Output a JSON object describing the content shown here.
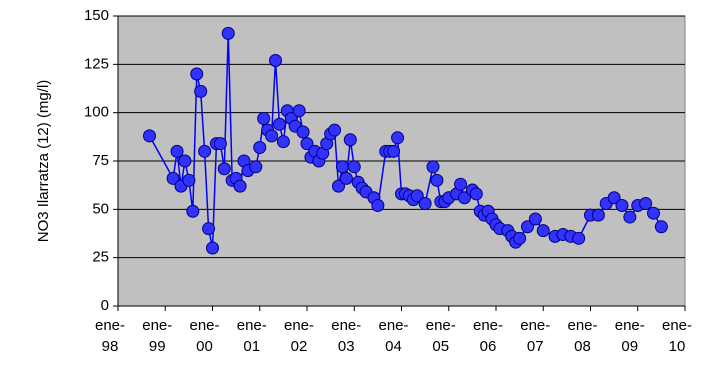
{
  "chart_data": {
    "type": "line",
    "y_label": "NO3 Ilarratza (12) (mg/l)",
    "color": "#0000ff",
    "marker_color": "#3232ff",
    "marker_edge": "#000080",
    "plot_bg": "#c0c0c0",
    "grid": true,
    "xlim": [
      "1998-01",
      "2010-01"
    ],
    "xticks": [
      {
        "value": "1998-01",
        "label": "ene-98"
      },
      {
        "value": "1999-01",
        "label": "ene-99"
      },
      {
        "value": "2000-01",
        "label": "ene-00"
      },
      {
        "value": "2001-01",
        "label": "ene-01"
      },
      {
        "value": "2002-01",
        "label": "ene-02"
      },
      {
        "value": "2003-01",
        "label": "ene-03"
      },
      {
        "value": "2004-01",
        "label": "ene-04"
      },
      {
        "value": "2005-01",
        "label": "ene-05"
      },
      {
        "value": "2006-01",
        "label": "ene-06"
      },
      {
        "value": "2007-01",
        "label": "ene-07"
      },
      {
        "value": "2008-01",
        "label": "ene-08"
      },
      {
        "value": "2009-01",
        "label": "ene-09"
      },
      {
        "value": "2010-01",
        "label": "ene-10"
      }
    ],
    "ylim": [
      0,
      150
    ],
    "yticks": [
      0,
      25,
      50,
      75,
      100,
      125,
      150
    ],
    "x": [
      "1998-09",
      "1999-03",
      "1999-04",
      "1999-05",
      "1999-06",
      "1999-07",
      "1999-08",
      "1999-09",
      "1999-10",
      "1999-11",
      "1999-12",
      "2000-01",
      "2000-02",
      "2000-03",
      "2000-04",
      "2000-05",
      "2000-06",
      "2000-07",
      "2000-08",
      "2000-09",
      "2000-10",
      "2000-12",
      "2001-01",
      "2001-02",
      "2001-03",
      "2001-04",
      "2001-05",
      "2001-06",
      "2001-07",
      "2001-08",
      "2001-09",
      "2001-10",
      "2001-11",
      "2001-12",
      "2002-01",
      "2002-02",
      "2002-03",
      "2002-04",
      "2002-05",
      "2002-06",
      "2002-07",
      "2002-08",
      "2002-09",
      "2002-10",
      "2002-11",
      "2002-12",
      "2003-01",
      "2003-02",
      "2003-03",
      "2003-04",
      "2003-06",
      "2003-07",
      "2003-09",
      "2003-10",
      "2003-11",
      "2003-12",
      "2004-01",
      "2004-02",
      "2004-03",
      "2004-04",
      "2004-05",
      "2004-07",
      "2004-09",
      "2004-10",
      "2004-11",
      "2004-12",
      "2005-01",
      "2005-03",
      "2005-04",
      "2005-05",
      "2005-07",
      "2005-08",
      "2005-09",
      "2005-10",
      "2005-11",
      "2005-12",
      "2006-01",
      "2006-02",
      "2006-04",
      "2006-05",
      "2006-06",
      "2006-07",
      "2006-09",
      "2006-11",
      "2007-01",
      "2007-04",
      "2007-06",
      "2007-08",
      "2007-10",
      "2008-01",
      "2008-03",
      "2008-05",
      "2008-07",
      "2008-09",
      "2008-11",
      "2009-01",
      "2009-03",
      "2009-05",
      "2009-07"
    ],
    "values": [
      88,
      66,
      80,
      62,
      75,
      65,
      49,
      120,
      111,
      80,
      40,
      30,
      84,
      84,
      71,
      141,
      65,
      66,
      62,
      75,
      70,
      72,
      82,
      97,
      91,
      88,
      127,
      94,
      85,
      101,
      97,
      93,
      101,
      90,
      84,
      77,
      80,
      75,
      79,
      84,
      89,
      91,
      62,
      72,
      66,
      86,
      72,
      64,
      61,
      59,
      56,
      52,
      80,
      80,
      80,
      87,
      58,
      58,
      57,
      55,
      57,
      53,
      72,
      65,
      54,
      54,
      56,
      58,
      63,
      56,
      60,
      58,
      49,
      47,
      49,
      45,
      42,
      40,
      39,
      36,
      33,
      35,
      41,
      45,
      39,
      36,
      37,
      36,
      35,
      47,
      47,
      53,
      56,
      52,
      46,
      52,
      53,
      48,
      41
    ]
  }
}
